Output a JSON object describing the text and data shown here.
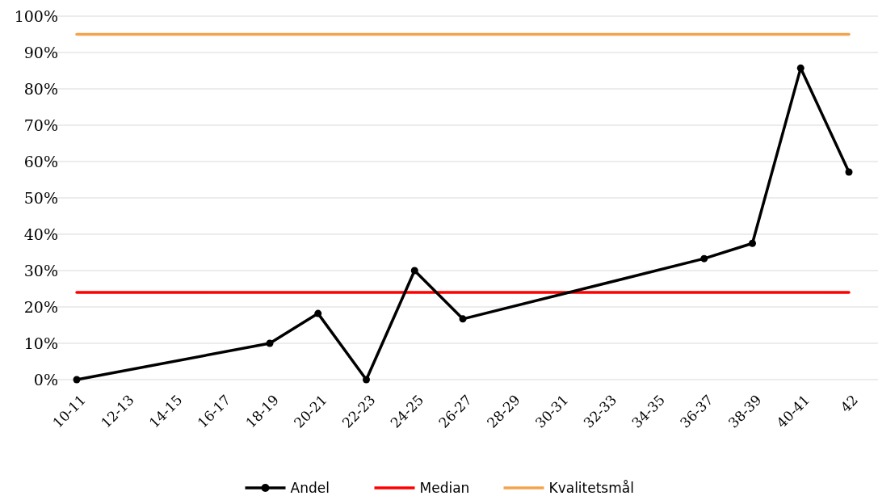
{
  "chart_data": {
    "type": "line",
    "categories": [
      "10-11",
      "12-13",
      "14-15",
      "16-17",
      "18-19",
      "20-21",
      "22-23",
      "24-25",
      "26-27",
      "28-29",
      "30-31",
      "32-33",
      "34-35",
      "36-37",
      "38-39",
      "40-41",
      "42"
    ],
    "series": [
      {
        "name": "Andel",
        "color": "#000000",
        "marker": "circle",
        "values": [
          0,
          null,
          null,
          null,
          10,
          18.2,
          0,
          30,
          16.7,
          null,
          null,
          null,
          null,
          33.3,
          37.5,
          85.7,
          57.1
        ]
      },
      {
        "name": "Median",
        "color": "#ff0000",
        "marker": "none",
        "values": [
          24,
          24,
          24,
          24,
          24,
          24,
          24,
          24,
          24,
          24,
          24,
          24,
          24,
          24,
          24,
          24,
          24
        ]
      },
      {
        "name": "Kvalitetsmål",
        "color": "#f4a34d",
        "marker": "none",
        "values": [
          95,
          95,
          95,
          95,
          95,
          95,
          95,
          95,
          95,
          95,
          95,
          95,
          95,
          95,
          95,
          95,
          95
        ]
      }
    ],
    "ylim": [
      0,
      100
    ],
    "yticks": [
      {
        "value": 0,
        "label": "0%"
      },
      {
        "value": 10,
        "label": "10%"
      },
      {
        "value": 20,
        "label": "20%"
      },
      {
        "value": 30,
        "label": "30%"
      },
      {
        "value": 40,
        "label": "40%"
      },
      {
        "value": 50,
        "label": "50%"
      },
      {
        "value": 60,
        "label": "60%"
      },
      {
        "value": 70,
        "label": "70%"
      },
      {
        "value": 80,
        "label": "80%"
      },
      {
        "value": 90,
        "label": "90%"
      },
      {
        "value": 100,
        "label": "100%"
      }
    ],
    "grid": "y",
    "legend": "bottom"
  }
}
